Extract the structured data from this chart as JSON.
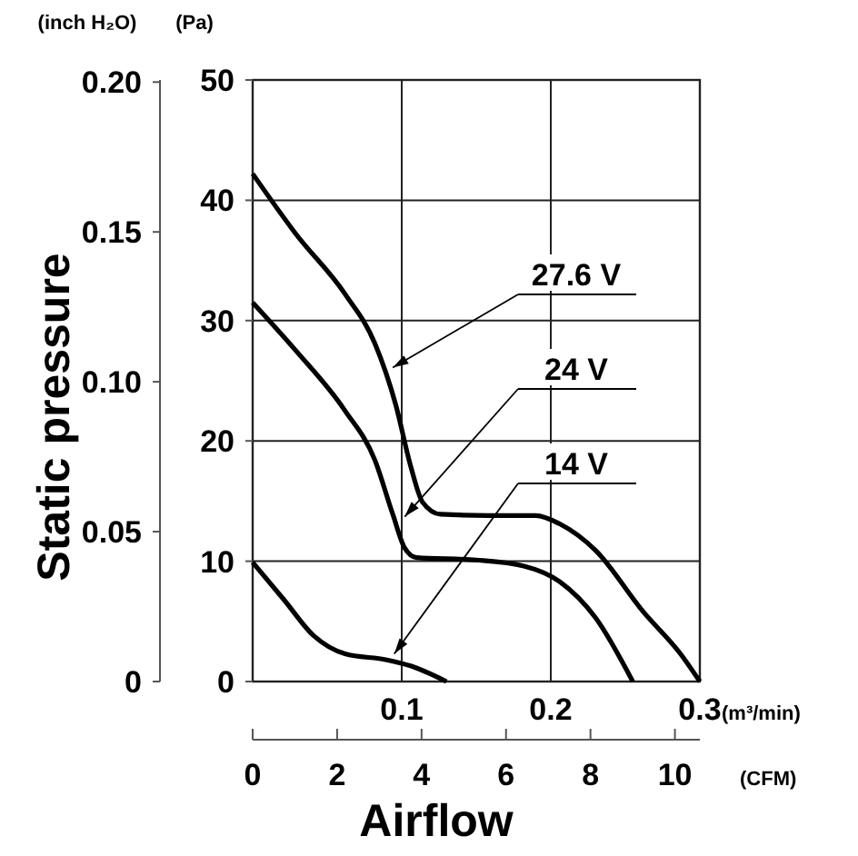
{
  "chart_data": {
    "type": "line",
    "xlabel": "Airflow",
    "ylabel": "(Pa)",
    "y2label": "Static pressure",
    "x2label": "(CFM)",
    "xlim": [
      0,
      0.3
    ],
    "xticks": [
      0.1,
      0.2,
      0.3
    ],
    "ylim": [
      0,
      50
    ],
    "yticks": [
      0,
      10,
      20,
      30,
      40,
      50
    ],
    "y2lim": [
      0,
      0.2007
    ],
    "y2ticks": [
      {
        "value": 0,
        "label": "0"
      },
      {
        "value": 0.05,
        "label": "0.05"
      },
      {
        "value": 0.1,
        "label": "0.10"
      },
      {
        "value": 0.15,
        "label": "0.15"
      },
      {
        "value": 0.2,
        "label": "0.20"
      }
    ],
    "x2lim": [
      0,
      10.59
    ],
    "x2ticks": [
      0,
      2,
      4,
      6,
      8,
      10
    ],
    "grid": true,
    "series": [
      {
        "color": "#000000",
        "x": [
          0,
          0.029,
          0.062,
          0.082,
          0.096,
          0.106,
          0.114,
          0.126,
          0.158,
          0.19,
          0.206,
          0.23,
          0.262,
          0.287,
          0.3
        ],
        "values": [
          42.2,
          37.2,
          32.2,
          28.1,
          23,
          17.9,
          14.9,
          13.9,
          13.8,
          13.8,
          13.1,
          10.9,
          5.8,
          2.3,
          0
        ]
      },
      {
        "color": "#000000",
        "x": [
          0,
          0.029,
          0.062,
          0.082,
          0.094,
          0.102,
          0.11,
          0.15,
          0.182,
          0.206,
          0.23,
          0.255
        ],
        "values": [
          31.5,
          27.5,
          22.5,
          18.4,
          13.9,
          11.1,
          10.3,
          10.1,
          9.6,
          8.3,
          5.3,
          0
        ]
      },
      {
        "color": "#000000",
        "x": [
          0,
          0.021,
          0.041,
          0.062,
          0.09,
          0.106,
          0.13
        ],
        "values": [
          9.9,
          6.8,
          3.8,
          2.3,
          1.8,
          1.3,
          0
        ]
      }
    ],
    "annotations": [
      {
        "text": "27.6 V",
        "x": 0.094,
        "y": 26.1
      },
      {
        "text": "24 V",
        "x": 0.102,
        "y": 13.7
      },
      {
        "text": "14 V",
        "x": 0.095,
        "y": 2.3
      },
      "(inch H₂O)",
      "(m³/min)"
    ]
  }
}
